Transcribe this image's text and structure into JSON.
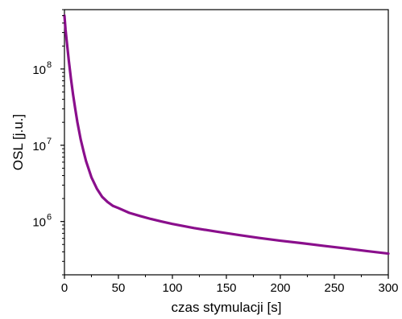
{
  "chart_data": {
    "type": "line",
    "title": "",
    "xlabel": "czas stymulacji [s]",
    "ylabel": "OSL [j.u.]",
    "x_scale": "linear",
    "y_scale": "log",
    "xlim": [
      0,
      300
    ],
    "ylim": [
      200000,
      600000000
    ],
    "x_ticks": [
      0,
      50,
      100,
      150,
      200,
      250,
      300
    ],
    "y_ticks": [
      {
        "value": 1000000,
        "base": "10",
        "exp": "6"
      },
      {
        "value": 10000000,
        "base": "10",
        "exp": "7"
      },
      {
        "value": 100000000,
        "base": "10",
        "exp": "8"
      }
    ],
    "grid": false,
    "line_color": "#8a0f8c",
    "series": [
      {
        "x": [
          0,
          1,
          2,
          4,
          6,
          8,
          10,
          12,
          15,
          18,
          20,
          25,
          30,
          35,
          40,
          45,
          50,
          60,
          70,
          80,
          90,
          100,
          120,
          140,
          160,
          180,
          200,
          220,
          240,
          260,
          280,
          300
        ],
        "y": [
          500000000,
          330000000,
          240000000,
          130000000,
          75000000,
          46000000,
          30000000,
          20000000,
          12000000,
          8000000,
          6200000,
          3800000,
          2700000,
          2100000,
          1800000,
          1600000,
          1500000,
          1300000,
          1180000,
          1080000,
          1000000,
          930000,
          820000,
          740000,
          670000,
          610000,
          560000,
          520000,
          480000,
          445000,
          410000,
          380000
        ]
      }
    ]
  }
}
